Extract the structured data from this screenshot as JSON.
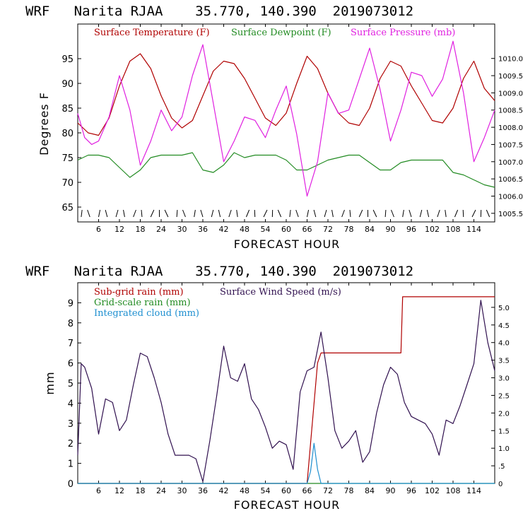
{
  "colors": {
    "temperature": "#b00000",
    "dewpoint": "#228b22",
    "pressure": "#e020e0",
    "subgrid_rain": "#b00000",
    "gridscale_rain": "#228b22",
    "cloud": "#1e8fd0",
    "wind": "#30104f"
  },
  "chart_data": [
    {
      "type": "line",
      "title": "WRF   Narita RJAA    35.770, 140.390  2019073012",
      "xlabel": "FORECAST HOUR",
      "ylabel": "Degrees F",
      "xlim": [
        0,
        120
      ],
      "ylim": [
        62,
        102
      ],
      "y2lim": [
        1005.25,
        1011.0
      ],
      "x_ticks": [
        6,
        12,
        18,
        24,
        30,
        36,
        42,
        48,
        54,
        60,
        66,
        72,
        78,
        84,
        90,
        96,
        102,
        108,
        114
      ],
      "y_ticks": [
        65,
        70,
        75,
        80,
        85,
        90,
        95
      ],
      "y2_ticks": [
        "1005.5",
        "1006.0",
        "1006.5",
        "1007.0",
        "1007.5",
        "1008.0",
        "1008.5",
        "1009.0",
        "1009.5",
        "1010.0"
      ],
      "legend": [
        "Surface Temperature (F)",
        "Surface Dewpoint (F)",
        "Surface Pressure (mb)"
      ],
      "series": [
        {
          "name": "Surface Temperature (F)",
          "axis": "left",
          "x": [
            0,
            3,
            6,
            9,
            12,
            15,
            18,
            21,
            24,
            27,
            30,
            33,
            36,
            39,
            42,
            45,
            48,
            51,
            54,
            57,
            60,
            63,
            66,
            69,
            72,
            75,
            78,
            81,
            84,
            87,
            90,
            93,
            96,
            99,
            102,
            105,
            108,
            111,
            114,
            117,
            120
          ],
          "values": [
            82.0,
            80.0,
            79.5,
            83.0,
            89.5,
            94.5,
            96.0,
            93.0,
            87.5,
            83.0,
            81.0,
            82.5,
            87.5,
            92.5,
            94.5,
            94.0,
            91.0,
            87.0,
            83.0,
            81.5,
            84.0,
            90.0,
            95.5,
            93.0,
            88.0,
            84.0,
            82.0,
            81.5,
            85.0,
            91.0,
            94.5,
            93.5,
            89.5,
            86.0,
            82.5,
            82.0,
            85.0,
            91.0,
            94.5,
            89.0,
            86.5
          ]
        },
        {
          "name": "Surface Dewpoint (F)",
          "axis": "left",
          "x": [
            0,
            3,
            6,
            9,
            12,
            15,
            18,
            21,
            24,
            27,
            30,
            33,
            36,
            39,
            42,
            45,
            48,
            51,
            54,
            57,
            60,
            63,
            66,
            69,
            72,
            75,
            78,
            81,
            84,
            87,
            90,
            93,
            96,
            99,
            102,
            105,
            108,
            111,
            114,
            117,
            120
          ],
          "values": [
            74.5,
            75.5,
            75.5,
            75.0,
            73.0,
            71.0,
            72.5,
            75.0,
            75.5,
            75.5,
            75.5,
            76.0,
            72.5,
            72.0,
            73.5,
            76.0,
            75.0,
            75.5,
            75.5,
            75.5,
            74.5,
            72.5,
            72.5,
            73.5,
            74.5,
            75.0,
            75.5,
            75.5,
            74.0,
            72.5,
            72.5,
            74.0,
            74.5,
            74.5,
            74.5,
            74.5,
            72.0,
            71.5,
            70.5,
            69.5,
            69.0
          ]
        },
        {
          "name": "Surface Pressure (mb)",
          "axis": "right",
          "x": [
            0,
            2,
            4,
            6,
            9,
            12,
            15,
            18,
            21,
            24,
            27,
            30,
            33,
            36,
            39,
            42,
            45,
            48,
            51,
            54,
            57,
            60,
            63,
            66,
            69,
            72,
            75,
            78,
            81,
            84,
            87,
            90,
            93,
            96,
            99,
            102,
            105,
            108,
            111,
            114,
            117,
            120
          ],
          "values": [
            1008.4,
            1007.7,
            1007.5,
            1007.6,
            1008.3,
            1009.5,
            1008.5,
            1006.9,
            1007.6,
            1008.5,
            1007.9,
            1008.3,
            1009.5,
            1010.4,
            1008.7,
            1007.0,
            1007.6,
            1008.3,
            1008.2,
            1007.7,
            1008.5,
            1009.2,
            1007.8,
            1006.0,
            1007.0,
            1009.0,
            1008.4,
            1008.5,
            1009.4,
            1010.3,
            1009.1,
            1007.6,
            1008.5,
            1009.6,
            1009.5,
            1008.9,
            1009.4,
            1010.5,
            1009.0,
            1007.0,
            1007.7,
            1008.5
          ]
        }
      ]
    },
    {
      "type": "line",
      "title": "WRF   Narita RJAA    35.770, 140.390  2019073012",
      "xlabel": "FORECAST HOUR",
      "ylabel": "mm",
      "xlim": [
        0,
        120
      ],
      "ylim": [
        0,
        10
      ],
      "y2lim": [
        0,
        5.7
      ],
      "x_ticks": [
        6,
        12,
        18,
        24,
        30,
        36,
        42,
        48,
        54,
        60,
        66,
        72,
        78,
        84,
        90,
        96,
        102,
        108,
        114
      ],
      "y_ticks": [
        0,
        1,
        2,
        3,
        4,
        5,
        6,
        7,
        8,
        9
      ],
      "y2_ticks": [
        "0",
        ".5",
        "1.0",
        "1.5",
        "2.0",
        "2.5",
        "3.0",
        "3.5",
        "4.0",
        "4.5",
        "5.0"
      ],
      "legend": [
        "Sub-grid rain (mm)",
        "Grid-scale rain (mm)",
        "Integrated cloud (mm)",
        "Surface Wind Speed (m/s)"
      ],
      "series": [
        {
          "name": "Sub-grid rain (mm)",
          "axis": "left",
          "x": [
            0,
            66,
            69,
            70,
            93,
            93.5,
            120
          ],
          "values": [
            0,
            0,
            6.0,
            6.5,
            6.5,
            9.3,
            9.3
          ]
        },
        {
          "name": "Grid-scale rain (mm)",
          "axis": "left",
          "x": [
            0,
            120
          ],
          "values": [
            0,
            0
          ]
        },
        {
          "name": "Integrated cloud (mm)",
          "axis": "left",
          "x": [
            0,
            66,
            67,
            68,
            69,
            70,
            71,
            120
          ],
          "values": [
            0,
            0,
            0.6,
            2.0,
            0.7,
            0,
            0,
            0
          ]
        },
        {
          "name": "Surface Wind Speed (m/s)",
          "axis": "right",
          "x": [
            0,
            1,
            2,
            4,
            6,
            8,
            10,
            12,
            14,
            16,
            18,
            20,
            22,
            24,
            26,
            28,
            30,
            32,
            34,
            36,
            38,
            40,
            42,
            44,
            46,
            48,
            50,
            52,
            54,
            56,
            58,
            60,
            62,
            64,
            66,
            68,
            70,
            72,
            74,
            76,
            78,
            80,
            82,
            84,
            86,
            88,
            90,
            92,
            94,
            96,
            98,
            100,
            102,
            104,
            106,
            108,
            110,
            112,
            114,
            116,
            118,
            120
          ],
          "values": [
            0.8,
            3.4,
            3.3,
            2.7,
            1.4,
            2.4,
            2.3,
            1.5,
            1.8,
            2.8,
            3.7,
            3.6,
            3.0,
            2.3,
            1.4,
            0.8,
            0.8,
            0.8,
            0.7,
            0.05,
            1.2,
            2.5,
            3.9,
            3.0,
            2.9,
            3.4,
            2.4,
            2.1,
            1.6,
            1.0,
            1.2,
            1.1,
            0.4,
            2.6,
            3.2,
            3.3,
            4.3,
            3.0,
            1.5,
            1.0,
            1.2,
            1.5,
            0.6,
            0.9,
            2.0,
            2.8,
            3.3,
            3.1,
            2.3,
            1.9,
            1.8,
            1.7,
            1.4,
            0.8,
            1.8,
            1.7,
            2.2,
            2.8,
            3.4,
            5.2,
            4.0,
            3.2
          ]
        }
      ]
    }
  ]
}
